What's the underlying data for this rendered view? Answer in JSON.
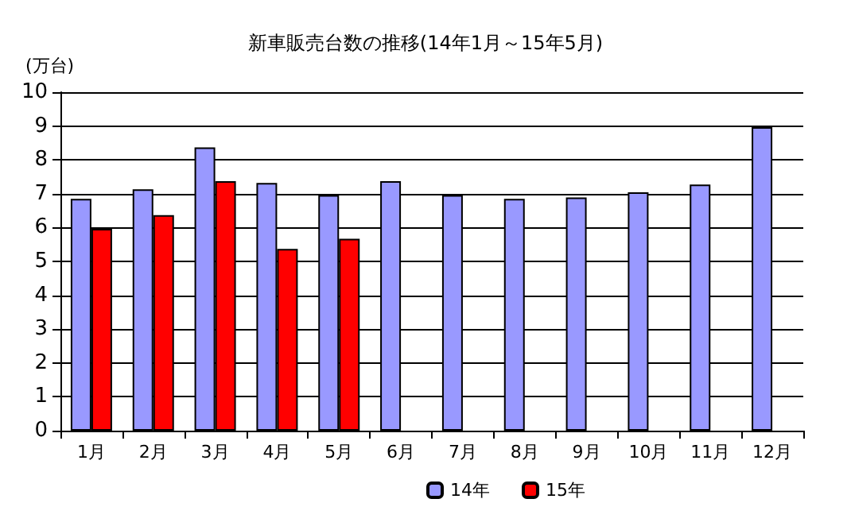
{
  "chart_data": {
    "type": "bar",
    "title": "新車販売台数の推移(14年1月～15年5月)",
    "ylabel": "(万台)",
    "categories": [
      "1月",
      "2月",
      "3月",
      "4月",
      "5月",
      "6月",
      "7月",
      "8月",
      "9月",
      "10月",
      "11月",
      "12月"
    ],
    "series": [
      {
        "name": "14年",
        "color": "#9999ff",
        "values": [
          6.85,
          7.13,
          8.37,
          7.32,
          6.96,
          7.37,
          6.96,
          6.85,
          6.89,
          7.04,
          7.27,
          8.97
        ]
      },
      {
        "name": "15年",
        "color": "#ff0000",
        "values": [
          5.96,
          6.37,
          7.37,
          5.37,
          5.67,
          null,
          null,
          null,
          null,
          null,
          null,
          null
        ]
      }
    ],
    "ylim": [
      0,
      10
    ],
    "yticks": [
      0,
      1,
      2,
      3,
      4,
      5,
      6,
      7,
      8,
      9,
      10
    ],
    "grid": "y",
    "legend": "bottom"
  }
}
